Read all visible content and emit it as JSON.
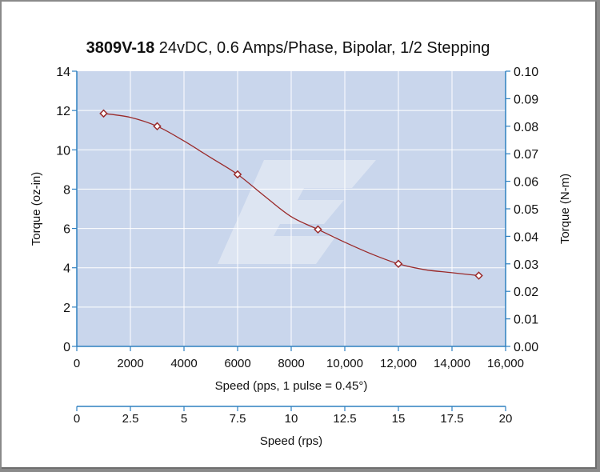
{
  "chart_data": {
    "type": "line",
    "title_bold": "3809V-18",
    "title_rest": " 24vDC, 0.6 Amps/Phase, Bipolar, 1/2 Stepping",
    "xlabel": "Speed (pps, 1 pulse = 0.45°)",
    "ylabel_left": "Torque (oz-in)",
    "ylabel_right": "Torque (N-m)",
    "xlabel_secondary": "Speed (rps)",
    "xlim": [
      0,
      16000
    ],
    "ylim": [
      0,
      14
    ],
    "ylim_right": [
      0,
      0.1
    ],
    "xlim_secondary": [
      0,
      20
    ],
    "x_ticks": [
      0,
      2000,
      4000,
      6000,
      8000,
      10000,
      12000,
      14000,
      16000
    ],
    "x_tick_labels": [
      "0",
      "2000",
      "4000",
      "6000",
      "8000",
      "10,000",
      "12,000",
      "14,000",
      "16,000"
    ],
    "y_ticks": [
      0,
      2,
      4,
      6,
      8,
      10,
      12,
      14
    ],
    "y_tick_labels": [
      "0",
      "2",
      "4",
      "6",
      "8",
      "10",
      "12",
      "14"
    ],
    "y_right_ticks": [
      0,
      0.01,
      0.02,
      0.03,
      0.04,
      0.05,
      0.06,
      0.07,
      0.08,
      0.09,
      0.1
    ],
    "y_right_tick_labels": [
      "0.00",
      "0.01",
      "0.02",
      "0.03",
      "0.04",
      "0.05",
      "0.06",
      "0.07",
      "0.08",
      "0.09",
      "0.10"
    ],
    "x2_ticks": [
      0,
      2.5,
      5,
      7.5,
      10,
      12.5,
      15,
      17.5,
      20
    ],
    "x2_tick_labels": [
      "0",
      "2.5",
      "5",
      "7.5",
      "10",
      "12.5",
      "15",
      "17.5",
      "20"
    ],
    "grid": true,
    "series": [
      {
        "name": "Torque",
        "curve_x": [
          1000,
          2000,
          3000,
          4000,
          5000,
          6000,
          7000,
          8000,
          9000,
          10000,
          11000,
          12000,
          13000,
          14000,
          15000
        ],
        "curve_y": [
          11.85,
          11.65,
          11.2,
          10.45,
          9.6,
          8.75,
          7.65,
          6.6,
          5.95,
          5.3,
          4.7,
          4.2,
          3.9,
          3.75,
          3.6
        ],
        "markers_x": [
          1000,
          3000,
          6000,
          9000,
          12000,
          15000
        ],
        "markers_y": [
          11.85,
          11.2,
          8.75,
          5.95,
          4.2,
          3.6
        ]
      }
    ],
    "colors": {
      "plot_bg": "#c9d6ec",
      "grid": "#ffffff",
      "axis": "#2f80c0",
      "line": "#9a2a2a",
      "watermark": "#e1e7f3"
    }
  }
}
